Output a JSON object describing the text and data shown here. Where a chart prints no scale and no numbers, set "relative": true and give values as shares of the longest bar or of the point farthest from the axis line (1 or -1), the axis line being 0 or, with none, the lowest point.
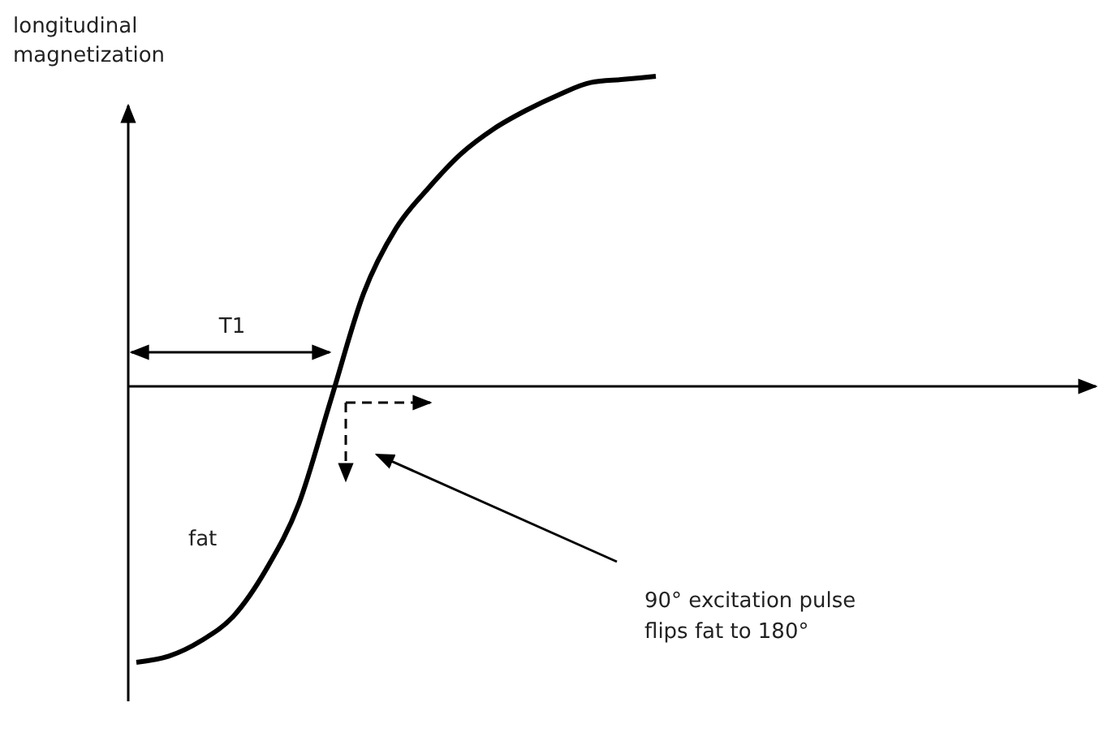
{
  "chart_data": {
    "type": "line",
    "relative": true,
    "ylabel": "longitudinal magnetization",
    "categories": [
      null,
      null,
      null,
      null,
      null,
      null,
      null,
      null,
      null,
      null,
      null,
      null,
      null,
      null,
      null,
      null,
      null,
      null,
      null,
      null,
      null,
      null,
      null,
      null,
      null,
      null,
      null,
      null,
      null,
      null
    ],
    "series": [
      {
        "color": "#000000",
        "values": [
          -0.89,
          -0.87,
          -0.82,
          -0.74,
          -0.59,
          -0.38,
          -0.04,
          0.3,
          0.51,
          0.64,
          0.75,
          0.83,
          0.89,
          0.94,
          0.98,
          0.99,
          1,
          null,
          null,
          null,
          null,
          null,
          null,
          null,
          null,
          null,
          null,
          null,
          null,
          null
        ]
      }
    ],
    "annotations": [
      "T1",
      "fat",
      "90° excitation pulse flips fat to 180°"
    ],
    "marker": "none",
    "line_style": "solid"
  }
}
